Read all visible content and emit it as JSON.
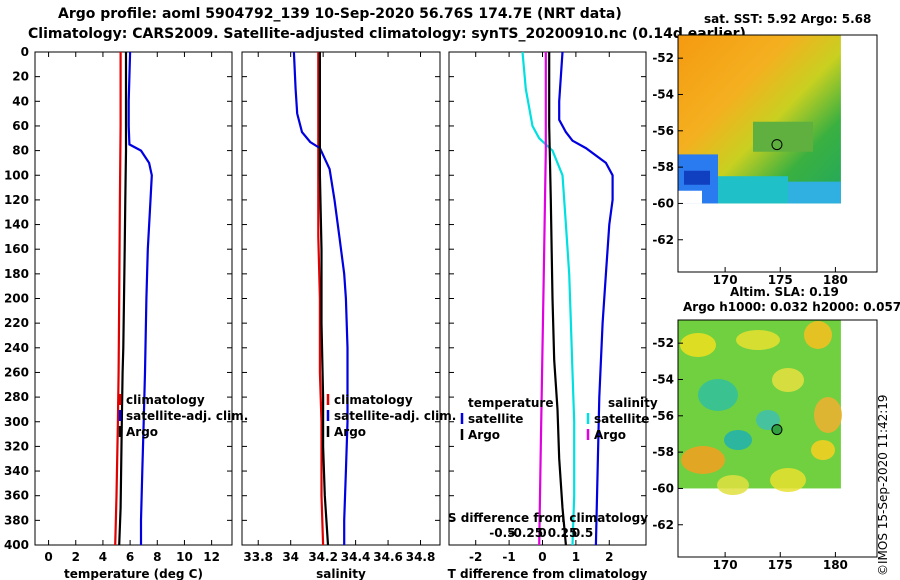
{
  "header": {
    "line1": "Argo profile: aoml 5904792_139 10-Sep-2020 56.76S 174.7E (NRT data)",
    "line2": "Climatology: CARS2009. Satellite-adjusted climatology: synTS_20200910.nc (0.14d earlier)"
  },
  "copyright": "©IMOS 15-Sep-2020 11:42:19",
  "depth_ticks": [
    0,
    20,
    40,
    60,
    80,
    100,
    120,
    140,
    160,
    180,
    200,
    220,
    240,
    260,
    280,
    300,
    320,
    340,
    360,
    380,
    400
  ],
  "colors": {
    "climatology": "#e00000",
    "satellite": "#0000e0",
    "argo": "#000000",
    "salinity_sat": "#00e0e0",
    "salinity_argo": "#e000e0"
  },
  "chart_data": [
    {
      "type": "line",
      "id": "temperature",
      "xlabel": "temperature (deg C)",
      "ylabel": "depth",
      "xlim": [
        -1,
        13.5
      ],
      "ylim": [
        400,
        0
      ],
      "xticks": [
        0,
        2,
        4,
        6,
        8,
        10,
        12
      ],
      "xtick_labels": [
        "0",
        "2",
        "4",
        "6",
        "8",
        "10",
        "12"
      ],
      "legend": [
        "climatology",
        "satellite-adj. clim.",
        "Argo"
      ],
      "series": [
        {
          "name": "climatology",
          "color": "#e00000",
          "points": [
            [
              5.3,
              0
            ],
            [
              5.3,
              60
            ],
            [
              5.25,
              120
            ],
            [
              5.2,
              200
            ],
            [
              5.15,
              260
            ],
            [
              5.1,
              300
            ],
            [
              5.0,
              360
            ],
            [
              4.9,
              400
            ]
          ]
        },
        {
          "name": "satellite-adj. clim.",
          "color": "#0000e0",
          "points": [
            [
              6.0,
              0
            ],
            [
              5.9,
              40
            ],
            [
              5.9,
              60
            ],
            [
              5.95,
              75
            ],
            [
              6.8,
              80
            ],
            [
              7.4,
              90
            ],
            [
              7.6,
              100
            ],
            [
              7.5,
              120
            ],
            [
              7.3,
              160
            ],
            [
              7.2,
              200
            ],
            [
              7.1,
              260
            ],
            [
              7.0,
              300
            ],
            [
              6.9,
              340
            ],
            [
              6.8,
              380
            ],
            [
              6.8,
              400
            ]
          ]
        },
        {
          "name": "Argo",
          "color": "#000000",
          "points": [
            [
              5.7,
              0
            ],
            [
              5.7,
              40
            ],
            [
              5.7,
              80
            ],
            [
              5.65,
              120
            ],
            [
              5.6,
              160
            ],
            [
              5.55,
              200
            ],
            [
              5.5,
              240
            ],
            [
              5.45,
              260
            ],
            [
              5.4,
              290
            ],
            [
              5.35,
              330
            ],
            [
              5.3,
              370
            ],
            [
              5.2,
              400
            ]
          ]
        }
      ]
    },
    {
      "type": "line",
      "id": "salinity",
      "xlabel": "salinity",
      "ylabel": "depth",
      "xlim": [
        33.7,
        34.92
      ],
      "ylim": [
        400,
        0
      ],
      "xticks": [
        33.8,
        34,
        34.2,
        34.4,
        34.6,
        34.8
      ],
      "xtick_labels": [
        "33.8",
        "34",
        "34.2",
        "34.4",
        "34.6",
        "34.8"
      ],
      "legend": [
        "climatology",
        "satellite-adj. clim.",
        "Argo"
      ],
      "series": [
        {
          "name": "climatology",
          "color": "#e00000",
          "points": [
            [
              34.17,
              0
            ],
            [
              34.17,
              80
            ],
            [
              34.17,
              150
            ],
            [
              34.18,
              200
            ],
            [
              34.18,
              260
            ],
            [
              34.19,
              300
            ],
            [
              34.19,
              360
            ],
            [
              34.2,
              400
            ]
          ]
        },
        {
          "name": "satellite-adj. clim.",
          "color": "#0000e0",
          "points": [
            [
              34.02,
              0
            ],
            [
              34.03,
              30
            ],
            [
              34.04,
              50
            ],
            [
              34.07,
              65
            ],
            [
              34.12,
              73
            ],
            [
              34.18,
              78
            ],
            [
              34.24,
              95
            ],
            [
              34.27,
              120
            ],
            [
              34.3,
              150
            ],
            [
              34.33,
              180
            ],
            [
              34.34,
              200
            ],
            [
              34.35,
              240
            ],
            [
              34.35,
              300
            ],
            [
              34.34,
              340
            ],
            [
              34.33,
              380
            ],
            [
              34.33,
              400
            ]
          ]
        },
        {
          "name": "Argo",
          "color": "#000000",
          "points": [
            [
              34.18,
              0
            ],
            [
              34.18,
              60
            ],
            [
              34.18,
              100
            ],
            [
              34.19,
              160
            ],
            [
              34.19,
              220
            ],
            [
              34.2,
              280
            ],
            [
              34.2,
              320
            ],
            [
              34.21,
              360
            ],
            [
              34.22,
              380
            ],
            [
              34.23,
              400
            ]
          ]
        }
      ]
    },
    {
      "type": "line",
      "id": "difference",
      "xlabel": "T difference from climatology",
      "xlabel_top": "S difference from climatology",
      "ylabel": "depth",
      "xlim": [
        -2.8,
        3.1
      ],
      "ylim": [
        400,
        0
      ],
      "xticks": [
        -2,
        -1,
        0,
        1,
        2
      ],
      "xtick_labels": [
        "-2",
        "-1",
        "0",
        "1",
        "2"
      ],
      "xticks_top": [
        -1.2,
        -0.5,
        0,
        0.6,
        1.2
      ],
      "xtick_labels_top": [
        "-0.5",
        "-0.25",
        "0",
        "0.25",
        "0.5"
      ],
      "legend_temperature_title": "temperature",
      "legend_temperature": [
        "satellite",
        "Argo"
      ],
      "legend_salinity_title": "salinity",
      "legend_salinity": [
        "satellite",
        "Argo"
      ],
      "series": [
        {
          "name": "S satellite",
          "color": "#00e0e0",
          "points": [
            [
              -0.6,
              0
            ],
            [
              -0.5,
              30
            ],
            [
              -0.3,
              60
            ],
            [
              -0.1,
              70
            ],
            [
              0.3,
              80
            ],
            [
              0.6,
              100
            ],
            [
              0.7,
              140
            ],
            [
              0.8,
              180
            ],
            [
              0.85,
              220
            ],
            [
              0.9,
              260
            ],
            [
              0.95,
              300
            ],
            [
              0.95,
              360
            ],
            [
              0.9,
              400
            ]
          ]
        },
        {
          "name": "S Argo",
          "color": "#e000e0",
          "points": [
            [
              0.1,
              0
            ],
            [
              0.1,
              80
            ],
            [
              0.05,
              160
            ],
            [
              0.0,
              240
            ],
            [
              -0.05,
              320
            ],
            [
              -0.1,
              400
            ]
          ]
        },
        {
          "name": "T satellite",
          "color": "#0000e0",
          "points": [
            [
              0.6,
              0
            ],
            [
              0.5,
              40
            ],
            [
              0.5,
              55
            ],
            [
              0.7,
              65
            ],
            [
              0.9,
              72
            ],
            [
              1.3,
              78
            ],
            [
              1.9,
              90
            ],
            [
              2.1,
              100
            ],
            [
              2.1,
              120
            ],
            [
              2.0,
              140
            ],
            [
              1.9,
              180
            ],
            [
              1.8,
              220
            ],
            [
              1.7,
              280
            ],
            [
              1.65,
              340
            ],
            [
              1.6,
              400
            ]
          ]
        },
        {
          "name": "T Argo",
          "color": "#000000",
          "points": [
            [
              0.2,
              0
            ],
            [
              0.2,
              60
            ],
            [
              0.25,
              120
            ],
            [
              0.3,
              200
            ],
            [
              0.35,
              250
            ],
            [
              0.45,
              290
            ],
            [
              0.5,
              330
            ],
            [
              0.6,
              370
            ],
            [
              0.7,
              400
            ]
          ]
        }
      ]
    }
  ],
  "maps": [
    {
      "id": "sst",
      "title": "sat. SST: 5.92 Argo: 5.68",
      "xticks": [
        170,
        175,
        180
      ],
      "xtick_labels": [
        "170",
        "175",
        "180"
      ],
      "yticks": [
        -52,
        -54,
        -56,
        -58,
        -60,
        -62
      ],
      "ytick_labels": [
        "-52",
        "-54",
        "-56",
        "-58",
        "-60",
        "-62"
      ],
      "argo_position": {
        "lon": 174.7,
        "lat": -56.76
      }
    },
    {
      "id": "sla",
      "title_line1": "Altim. SLA: 0.19",
      "title_line2": "Argo h1000: 0.032 h2000: 0.057",
      "xticks": [
        170,
        175,
        180
      ],
      "xtick_labels": [
        "170",
        "175",
        "180"
      ],
      "yticks": [
        -52,
        -54,
        -56,
        -58,
        -60,
        -62
      ],
      "ytick_labels": [
        "-52",
        "-54",
        "-56",
        "-58",
        "-60",
        "-62"
      ],
      "argo_position": {
        "lon": 174.7,
        "lat": -56.76
      }
    }
  ]
}
